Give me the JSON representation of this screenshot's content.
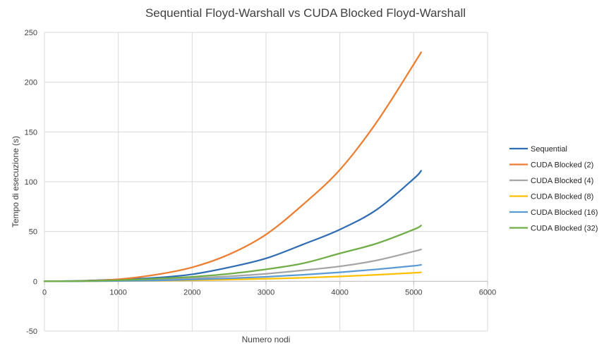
{
  "chart_data": {
    "type": "line",
    "title": "Sequential Floyd-Warshall vs CUDA Blocked Floyd-Warshall",
    "xlabel": "Numero nodi",
    "ylabel": "Tempo di esecuzione (s)",
    "xlim": [
      0,
      6000
    ],
    "ylim": [
      -50,
      250
    ],
    "xticks": [
      0,
      1000,
      2000,
      3000,
      4000,
      5000,
      6000
    ],
    "yticks": [
      -50,
      0,
      50,
      100,
      150,
      200,
      250
    ],
    "grid": true,
    "legend_position": "right",
    "x": [
      0,
      500,
      1000,
      1500,
      2000,
      2500,
      3000,
      3500,
      4000,
      4500,
      5000,
      5100
    ],
    "series": [
      {
        "name": "Sequential",
        "color": "#2e6cb5",
        "values": [
          0,
          0.5,
          1.8,
          3.5,
          7,
          14,
          23,
          37,
          52,
          72,
          103,
          111
        ]
      },
      {
        "name": "CUDA Blocked (2)",
        "color": "#ed7d31",
        "values": [
          0,
          0.3,
          2,
          6.5,
          14,
          27,
          47,
          77,
          112,
          160,
          218,
          230
        ]
      },
      {
        "name": "CUDA Blocked (4)",
        "color": "#a5a5a5",
        "values": [
          0,
          0.2,
          0.5,
          1.5,
          3,
          5,
          7.5,
          11,
          15,
          21,
          30,
          32
        ]
      },
      {
        "name": "CUDA Blocked (8)",
        "color": "#ffc000",
        "values": [
          0,
          0.1,
          0.2,
          0.5,
          1,
          1.7,
          2.5,
          3.5,
          4.8,
          6.5,
          8.5,
          9
        ]
      },
      {
        "name": "CUDA Blocked (16)",
        "color": "#5b9bd5",
        "values": [
          0,
          0.1,
          0.3,
          0.8,
          1.7,
          3,
          4.5,
          6.5,
          9,
          12,
          15.5,
          16.5
        ]
      },
      {
        "name": "CUDA Blocked (32)",
        "color": "#70ad47",
        "values": [
          0,
          0.2,
          1,
          2.5,
          4.5,
          7.5,
          12,
          18,
          28,
          38,
          52,
          56
        ]
      }
    ]
  }
}
